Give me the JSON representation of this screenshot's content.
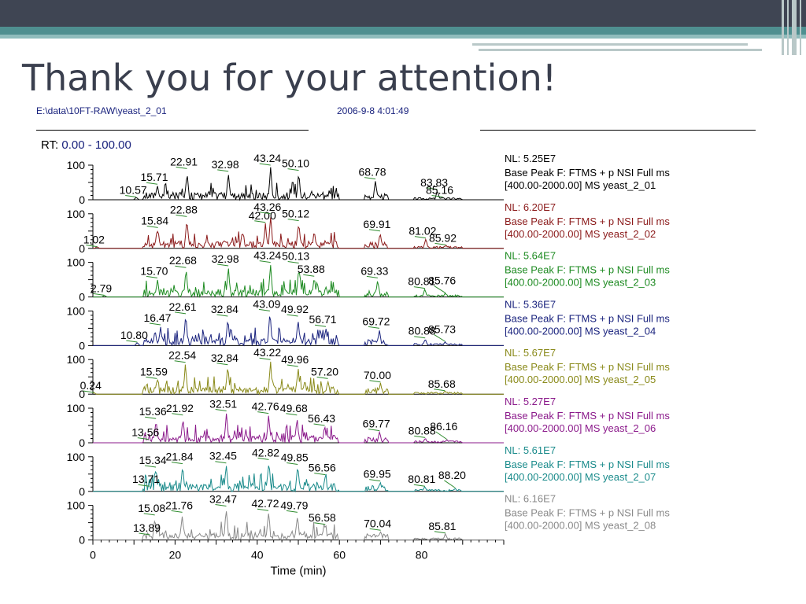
{
  "slide": {
    "title": "Thank you for your attention!"
  },
  "header": {
    "file": "E:\\data\\10FT-RAW\\yeast_2_01",
    "datetime": "2006-9-8 4:01:49"
  },
  "rt": {
    "label": "RT:",
    "range": "0.00 - 100.00"
  },
  "chart_data": {
    "type": "line",
    "xlabel": "Time (min)",
    "xlim": [
      0,
      100
    ],
    "x_ticks": [
      "0",
      "20",
      "40",
      "60",
      "80"
    ],
    "ylim": [
      0,
      100
    ],
    "y_ticks": [
      "100",
      "0"
    ],
    "series": [
      {
        "id": "yeast_2_01",
        "color": "#000000",
        "nl": "NL: 5.25E7",
        "scan": "Base Peak F: FTMS + p NSI Full ms",
        "range_ms": "[400.00-2000.00]  MS yeast_2_01",
        "peaks": [
          {
            "x": 10.57,
            "y": 8,
            "label": "10.57"
          },
          {
            "x": 15.71,
            "y": 45,
            "label": "15.71"
          },
          {
            "x": 22.91,
            "y": 90,
            "label": "22.91"
          },
          {
            "x": 32.98,
            "y": 82,
            "label": "32.98"
          },
          {
            "x": 43.24,
            "y": 100,
            "label": "43.24"
          },
          {
            "x": 50.1,
            "y": 85,
            "label": "50.10"
          },
          {
            "x": 68.78,
            "y": 60,
            "label": "68.78"
          },
          {
            "x": 83.83,
            "y": 30,
            "label": "83.83"
          },
          {
            "x": 85.16,
            "y": 8,
            "label": "85.16"
          }
        ]
      },
      {
        "id": "yeast_2_02",
        "color": "#8b1a1a",
        "nl": "NL: 6.20E7",
        "scan": "Base Peak F: FTMS + p NSI Full ms",
        "range_ms": "[400.00-2000.00]  MS yeast_2_02",
        "peaks": [
          {
            "x": 1.02,
            "y": 5,
            "label": "1.02"
          },
          {
            "x": 15.84,
            "y": 60,
            "label": "15.84"
          },
          {
            "x": 22.88,
            "y": 92,
            "label": "22.88"
          },
          {
            "x": 42.0,
            "y": 75,
            "label": "42.00"
          },
          {
            "x": 43.26,
            "y": 100,
            "label": "43.26"
          },
          {
            "x": 50.12,
            "y": 80,
            "label": "50.12"
          },
          {
            "x": 69.91,
            "y": 50,
            "label": "69.91"
          },
          {
            "x": 81.02,
            "y": 30,
            "label": "81.02"
          },
          {
            "x": 85.92,
            "y": 10,
            "label": "85.92"
          }
        ]
      },
      {
        "id": "yeast_2_03",
        "color": "#1e8b22",
        "nl": "NL: 5.64E7",
        "scan": "Base Peak F: FTMS + p NSI Full ms",
        "range_ms": "[400.00-2000.00]  MS yeast_2_03",
        "peaks": [
          {
            "x": 2.79,
            "y": 5,
            "label": "2.79"
          },
          {
            "x": 15.7,
            "y": 55,
            "label": "15.70"
          },
          {
            "x": 22.68,
            "y": 85,
            "label": "22.68"
          },
          {
            "x": 32.98,
            "y": 90,
            "label": "32.98"
          },
          {
            "x": 43.24,
            "y": 100,
            "label": "43.24"
          },
          {
            "x": 50.13,
            "y": 98,
            "label": "50.13"
          },
          {
            "x": 53.88,
            "y": 60,
            "label": "53.88"
          },
          {
            "x": 69.33,
            "y": 55,
            "label": "69.33"
          },
          {
            "x": 80.81,
            "y": 25,
            "label": "80.81"
          },
          {
            "x": 85.76,
            "y": 12,
            "label": "85.76"
          }
        ]
      },
      {
        "id": "yeast_2_04",
        "color": "#1a237e",
        "nl": "NL: 5.36E7",
        "scan": "Base Peak F: FTMS + p NSI Full ms",
        "range_ms": "[400.00-2000.00]  MS yeast_2_04",
        "peaks": [
          {
            "x": 10.8,
            "y": 10,
            "label": "10.80"
          },
          {
            "x": 16.47,
            "y": 60,
            "label": "16.47"
          },
          {
            "x": 22.61,
            "y": 92,
            "label": "22.61"
          },
          {
            "x": 32.84,
            "y": 85,
            "label": "32.84"
          },
          {
            "x": 43.09,
            "y": 100,
            "label": "43.09"
          },
          {
            "x": 49.92,
            "y": 85,
            "label": "49.92"
          },
          {
            "x": 56.71,
            "y": 55,
            "label": "56.71"
          },
          {
            "x": 69.72,
            "y": 50,
            "label": "69.72"
          },
          {
            "x": 80.88,
            "y": 22,
            "label": "80.88"
          },
          {
            "x": 85.73,
            "y": 12,
            "label": "85.73"
          }
        ]
      },
      {
        "id": "yeast_2_05",
        "color": "#8a8a1a",
        "nl": "NL: 5.67E7",
        "scan": "Base Peak F: FTMS + p NSI Full ms",
        "range_ms": "[400.00-2000.00]  MS yeast_2_05",
        "peaks": [
          {
            "x": 0.24,
            "y": 5,
            "label": "0.24"
          },
          {
            "x": 15.59,
            "y": 45,
            "label": "15.59"
          },
          {
            "x": 22.54,
            "y": 92,
            "label": "22.54"
          },
          {
            "x": 32.84,
            "y": 85,
            "label": "32.84"
          },
          {
            "x": 43.22,
            "y": 100,
            "label": "43.22"
          },
          {
            "x": 49.96,
            "y": 80,
            "label": "49.96"
          },
          {
            "x": 57.2,
            "y": 45,
            "label": "57.20"
          },
          {
            "x": 70.0,
            "y": 35,
            "label": "70.00"
          },
          {
            "x": 85.68,
            "y": 10,
            "label": "85.68"
          }
        ]
      },
      {
        "id": "yeast_2_06",
        "color": "#8b1a8b",
        "nl": "NL: 5.27E7",
        "scan": "Base Peak F: FTMS + p NSI Full ms",
        "range_ms": "[400.00-2000.00]  MS yeast_2_06",
        "peaks": [
          {
            "x": 13.56,
            "y": 10,
            "label": "13.56"
          },
          {
            "x": 15.36,
            "y": 70,
            "label": "15.36"
          },
          {
            "x": 21.92,
            "y": 80,
            "label": "21.92"
          },
          {
            "x": 32.51,
            "y": 92,
            "label": "32.51"
          },
          {
            "x": 42.76,
            "y": 85,
            "label": "42.76"
          },
          {
            "x": 49.68,
            "y": 80,
            "label": "49.68"
          },
          {
            "x": 56.43,
            "y": 50,
            "label": "56.43"
          },
          {
            "x": 69.77,
            "y": 35,
            "label": "69.77"
          },
          {
            "x": 80.88,
            "y": 15,
            "label": "80.88"
          },
          {
            "x": 86.16,
            "y": 10,
            "label": "86.16"
          }
        ]
      },
      {
        "id": "yeast_2_07",
        "color": "#1a8b8b",
        "nl": "NL: 5.61E7",
        "scan": "Base Peak F: FTMS + p NSI Full ms",
        "range_ms": "[400.00-2000.00]  MS yeast_2_07",
        "peaks": [
          {
            "x": 13.71,
            "y": 15,
            "label": "13.71"
          },
          {
            "x": 15.34,
            "y": 70,
            "label": "15.34"
          },
          {
            "x": 21.84,
            "y": 80,
            "label": "21.84"
          },
          {
            "x": 32.45,
            "y": 82,
            "label": "32.45"
          },
          {
            "x": 42.82,
            "y": 92,
            "label": "42.82"
          },
          {
            "x": 49.85,
            "y": 78,
            "label": "49.85"
          },
          {
            "x": 56.56,
            "y": 48,
            "label": "56.56"
          },
          {
            "x": 69.95,
            "y": 30,
            "label": "69.95"
          },
          {
            "x": 80.81,
            "y": 15,
            "label": "80.81"
          },
          {
            "x": 88.2,
            "y": 10,
            "label": "88.20"
          }
        ]
      },
      {
        "id": "yeast_2_08",
        "color": "#8a8a8a",
        "nl": "NL: 6.16E7",
        "scan": "Base Peak F: FTMS + p NSI Full ms",
        "range_ms": "[400.00-2000.00]  MS yeast_2_08",
        "peaks": [
          {
            "x": 13.89,
            "y": 15,
            "label": "13.89"
          },
          {
            "x": 15.08,
            "y": 72,
            "label": "15.08"
          },
          {
            "x": 21.76,
            "y": 80,
            "label": "21.76"
          },
          {
            "x": 32.47,
            "y": 98,
            "label": "32.47"
          },
          {
            "x": 42.72,
            "y": 85,
            "label": "42.72"
          },
          {
            "x": 49.79,
            "y": 80,
            "label": "49.79"
          },
          {
            "x": 56.58,
            "y": 45,
            "label": "56.58"
          },
          {
            "x": 70.04,
            "y": 28,
            "label": "70.04"
          },
          {
            "x": 85.81,
            "y": 20,
            "label": "85.81"
          }
        ]
      }
    ]
  }
}
